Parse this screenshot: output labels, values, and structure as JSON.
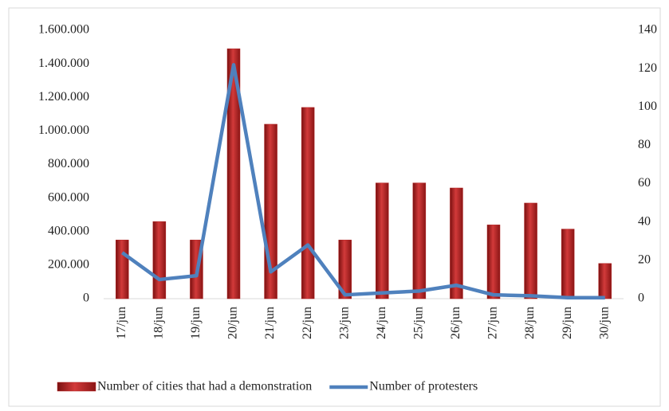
{
  "chart_data": {
    "type": "bar",
    "categories": [
      "17/jun",
      "18/jun",
      "19/jun",
      "20/jun",
      "21/jun",
      "22/jun",
      "23/jun",
      "24/jun",
      "25/jun",
      "26/jun",
      "27/jun",
      "28/jun",
      "29/jun",
      "30/jun"
    ],
    "series": [
      {
        "name": "Number of cities that had a demonstration",
        "type": "bar",
        "color": "#b22222",
        "values": [
          350000,
          460000,
          350000,
          1490000,
          1040000,
          1140000,
          350000,
          690000,
          690000,
          660000,
          440000,
          570000,
          415000,
          210000
        ]
      },
      {
        "name": "Number of protesters",
        "type": "line",
        "axis": "y2",
        "color": "#4f81bd",
        "values": [
          24,
          10,
          12,
          122,
          14,
          28,
          2,
          3,
          4,
          7,
          2,
          1.5,
          0.5,
          0.5
        ]
      }
    ],
    "ylim": [
      0,
      1600000
    ],
    "yticks": [
      0,
      {
        "value": 200000,
        "label": "200.000"
      },
      {
        "value": 400000,
        "label": "400.000"
      },
      {
        "value": 600000,
        "label": "600.000"
      },
      {
        "value": 800000,
        "label": "800.000"
      },
      {
        "value": 1000000,
        "label": "1.000.000"
      },
      {
        "value": 1200000,
        "label": "1.200.000"
      },
      {
        "value": 1400000,
        "label": "1.400.000"
      },
      {
        "value": 1600000,
        "label": "1.600.000"
      }
    ],
    "y2lim": [
      0,
      140
    ],
    "y2ticks": [
      0,
      20,
      40,
      60,
      80,
      100,
      120,
      140
    ],
    "legend": "bottom"
  }
}
